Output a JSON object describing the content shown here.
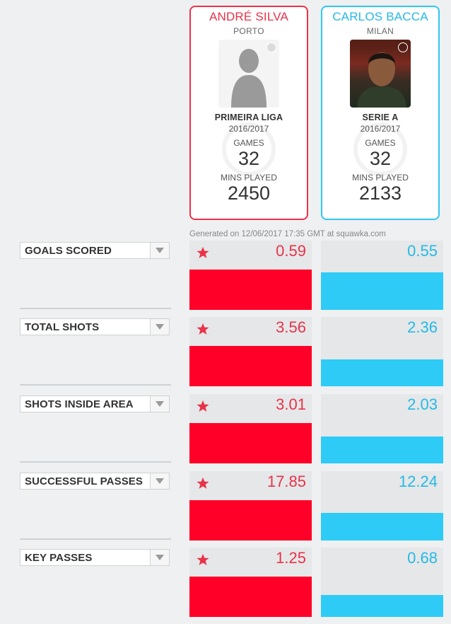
{
  "generated": "Generated on 12/06/2017 17:35 GMT at squawka.com",
  "colors": {
    "player1": "#ff0028",
    "player2": "#2ecbf6"
  },
  "players": [
    {
      "name": "ANDRÉ SILVA",
      "club": "PORTO",
      "competition": "PRIMEIRA LIGA",
      "season": "2016/2017",
      "games_label": "GAMES",
      "games": "32",
      "mins_label": "MINS PLAYED",
      "mins": "2450"
    },
    {
      "name": "CARLOS BACCA",
      "club": "MILAN",
      "competition": "SERIE A",
      "season": "2016/2017",
      "games_label": "GAMES",
      "games": "32",
      "mins_label": "MINS PLAYED",
      "mins": "2133"
    }
  ],
  "metrics": [
    {
      "label": "GOALS SCORED",
      "p1": "0.59",
      "p2": "0.55",
      "leader": "p1",
      "p1_fill": 1.0,
      "p2_fill": 0.93
    },
    {
      "label": "TOTAL SHOTS",
      "p1": "3.56",
      "p2": "2.36",
      "leader": "p1",
      "p1_fill": 1.0,
      "p2_fill": 0.66
    },
    {
      "label": "SHOTS INSIDE AREA",
      "p1": "3.01",
      "p2": "2.03",
      "leader": "p1",
      "p1_fill": 1.0,
      "p2_fill": 0.67
    },
    {
      "label": "SUCCESSFUL PASSES",
      "p1": "17.85",
      "p2": "12.24",
      "leader": "p1",
      "p1_fill": 1.0,
      "p2_fill": 0.69
    },
    {
      "label": "KEY PASSES",
      "p1": "1.25",
      "p2": "0.68",
      "leader": "p1",
      "p1_fill": 1.0,
      "p2_fill": 0.54
    }
  ]
}
